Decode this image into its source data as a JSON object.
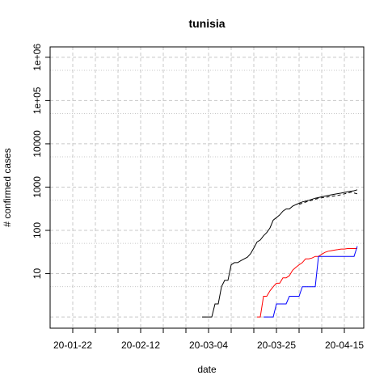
{
  "chart_data": {
    "type": "line",
    "title": "tunisia",
    "xlabel": "date",
    "ylabel": "# confirmed cases",
    "y_scale": "log",
    "grid": true,
    "xlim": [
      "2020-01-15",
      "2020-04-21"
    ],
    "ylim": [
      1,
      1000000
    ],
    "x_ticks": [
      {
        "date": "2020-01-22",
        "label": "20-01-22"
      },
      {
        "date": "2020-02-12",
        "label": "20-02-12"
      },
      {
        "date": "2020-03-04",
        "label": "20-03-04"
      },
      {
        "date": "2020-03-25",
        "label": "20-03-25"
      },
      {
        "date": "2020-04-15",
        "label": "20-04-15"
      }
    ],
    "y_ticks": [
      {
        "value": 10,
        "label": "10"
      },
      {
        "value": 100,
        "label": "100"
      },
      {
        "value": 1000,
        "label": "1000"
      },
      {
        "value": 10000,
        "label": "10000"
      },
      {
        "value": 100000,
        "label": "1e+05"
      },
      {
        "value": 1000000,
        "label": "1e+06"
      }
    ],
    "series": [
      {
        "color": "#000000",
        "dash": "solid",
        "x": [
          "2020-03-02",
          "2020-03-05",
          "2020-03-06",
          "2020-03-07",
          "2020-03-08",
          "2020-03-09",
          "2020-03-10",
          "2020-03-11",
          "2020-03-12",
          "2020-03-13",
          "2020-03-14",
          "2020-03-16",
          "2020-03-17",
          "2020-03-18",
          "2020-03-19",
          "2020-03-20",
          "2020-03-21",
          "2020-03-22",
          "2020-03-23",
          "2020-03-24",
          "2020-03-25",
          "2020-03-26",
          "2020-03-27",
          "2020-03-28",
          "2020-03-29",
          "2020-03-30",
          "2020-03-31",
          "2020-04-01",
          "2020-04-02",
          "2020-04-04",
          "2020-04-06",
          "2020-04-08",
          "2020-04-10",
          "2020-04-12",
          "2020-04-14",
          "2020-04-16",
          "2020-04-18",
          "2020-04-19"
        ],
        "values": [
          1,
          1,
          2,
          2,
          5,
          7,
          7,
          16,
          18,
          18,
          20,
          24,
          29,
          39,
          54,
          60,
          75,
          89,
          114,
          173,
          197,
          227,
          278,
          312,
          312,
          362,
          394,
          423,
          455,
          495,
          553,
          596,
          643,
          685,
          726,
          780,
          822,
          866
        ]
      },
      {
        "color": "#000000",
        "dash": "dashed",
        "x": [
          "2020-04-01",
          "2020-04-03",
          "2020-04-05",
          "2020-04-07",
          "2020-04-09",
          "2020-04-11",
          "2020-04-13",
          "2020-04-15",
          "2020-04-17",
          "2020-04-19"
        ],
        "values": [
          400,
          450,
          500,
          550,
          580,
          610,
          640,
          700,
          760,
          700
        ]
      },
      {
        "color": "#ff0000",
        "dash": "solid",
        "x": [
          "2020-03-19",
          "2020-03-20",
          "2020-03-21",
          "2020-03-22",
          "2020-03-23",
          "2020-03-24",
          "2020-03-25",
          "2020-03-26",
          "2020-03-27",
          "2020-03-28",
          "2020-03-29",
          "2020-03-30",
          "2020-03-31",
          "2020-04-01",
          "2020-04-02",
          "2020-04-03",
          "2020-04-04",
          "2020-04-05",
          "2020-04-06",
          "2020-04-07",
          "2020-04-08",
          "2020-04-09",
          "2020-04-10",
          "2020-04-11",
          "2020-04-12",
          "2020-04-13",
          "2020-04-14",
          "2020-04-15",
          "2020-04-16",
          "2020-04-17",
          "2020-04-19"
        ],
        "values": [
          1,
          1,
          3,
          3,
          4,
          5,
          6,
          6,
          8,
          8,
          9,
          12,
          14,
          16,
          18,
          22,
          22,
          23,
          25,
          25,
          28,
          31,
          33,
          34,
          35,
          36,
          37,
          37,
          38,
          38,
          38
        ]
      },
      {
        "color": "#0000ff",
        "dash": "solid",
        "x": [
          "2020-03-21",
          "2020-03-24",
          "2020-03-25",
          "2020-03-28",
          "2020-03-29",
          "2020-04-01",
          "2020-04-02",
          "2020-04-06",
          "2020-04-07",
          "2020-04-18",
          "2020-04-19"
        ],
        "values": [
          1,
          1,
          2,
          2,
          3,
          3,
          5,
          5,
          25,
          25,
          43
        ]
      }
    ]
  }
}
